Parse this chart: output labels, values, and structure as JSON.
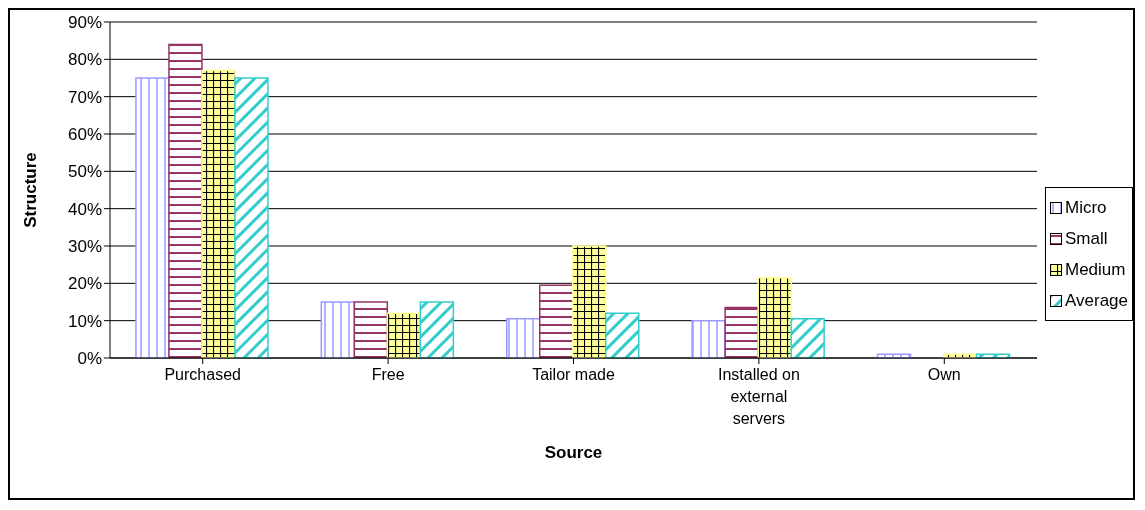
{
  "chart_data": {
    "type": "bar",
    "xlabel": "Source",
    "ylabel": "Structure",
    "categories": [
      "Purchased",
      "Free",
      "Tailor made",
      "Installed on external servers",
      "Own"
    ],
    "series": [
      {
        "name": "Micro",
        "color": "#9999ff",
        "values": [
          75,
          15,
          10.5,
          10,
          1
        ]
      },
      {
        "name": "Small",
        "color": "#993366",
        "values": [
          84,
          15,
          19.5,
          13.5,
          0
        ]
      },
      {
        "name": "Medium",
        "color": "#ffff99",
        "values": [
          77,
          12,
          30,
          21.5,
          1
        ]
      },
      {
        "name": "Average",
        "color": "#33cccc",
        "values": [
          75,
          15,
          12,
          10.5,
          1
        ]
      }
    ],
    "ylim": [
      0,
      90
    ],
    "yticks": [
      {
        "value": 0,
        "label": "0%"
      },
      {
        "value": 10,
        "label": "10%"
      },
      {
        "value": 20,
        "label": "20%"
      },
      {
        "value": 30,
        "label": "30%"
      },
      {
        "value": 40,
        "label": "40%"
      },
      {
        "value": 50,
        "label": "50%"
      },
      {
        "value": 60,
        "label": "60%"
      },
      {
        "value": 70,
        "label": "70%"
      },
      {
        "value": 80,
        "label": "80%"
      },
      {
        "value": 90,
        "label": "90%"
      }
    ],
    "grid": "y",
    "legend": "right"
  }
}
